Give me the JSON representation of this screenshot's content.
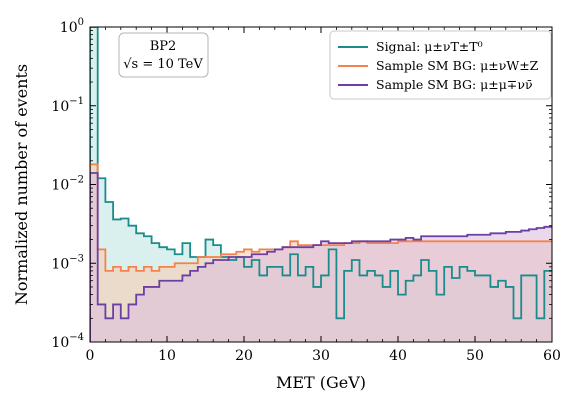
{
  "chart_data": {
    "type": "area",
    "step": true,
    "x_axis": {
      "label": "MET (GeV)",
      "range": [
        0,
        60
      ],
      "ticks": [
        0,
        10,
        20,
        30,
        40,
        50,
        60
      ]
    },
    "y_axis": {
      "label": "Normalized number of events",
      "scale": "log",
      "range": [
        0.0001,
        1
      ],
      "ticks": [
        {
          "value": 0.0001,
          "base": "10",
          "exp": "−4"
        },
        {
          "value": 0.001,
          "base": "10",
          "exp": "−3"
        },
        {
          "value": 0.01,
          "base": "10",
          "exp": "−2"
        },
        {
          "value": 0.1,
          "base": "10",
          "exp": "−1"
        },
        {
          "value": 1,
          "base": "10",
          "exp": "0"
        }
      ]
    },
    "bin_edges_start": 0,
    "bin_width": 1,
    "annotation": {
      "line1": "BP2",
      "line2": "√s = 10 TeV"
    },
    "legend": {
      "placement": "top-right"
    },
    "series": [
      {
        "name": "Signal: μ±νT±T⁰",
        "color": "#1a8c8c",
        "fill": "#bfe6e3",
        "values": [
          1.2,
          0.012,
          0.006,
          0.0036,
          0.0037,
          0.003,
          0.0024,
          0.0022,
          0.0018,
          0.0016,
          0.0015,
          0.0013,
          0.0018,
          0.0012,
          0.0012,
          0.002,
          0.0017,
          0.0012,
          0.0011,
          0.0012,
          0.0009,
          0.0011,
          0.0007,
          0.0009,
          0.0009,
          0.0007,
          0.0013,
          0.0007,
          0.0009,
          0.0005,
          0.0007,
          0.0015,
          0.0002,
          0.0008,
          0.0011,
          0.0007,
          0.0008,
          0.0007,
          0.0005,
          0.0008,
          0.0004,
          0.0006,
          0.0007,
          0.0011,
          0.0008,
          0.0004,
          0.0009,
          0.00065,
          0.0009,
          0.0008,
          0.0007,
          0.0007,
          0.0005,
          0.0006,
          0.0005,
          0.0002,
          0.0007,
          0.0007,
          0.0002,
          0.0008
        ]
      },
      {
        "name": "Sample SM BG: μ±νW±Z",
        "color": "#f4824a",
        "fill": "#f7cdb4",
        "values": [
          0.018,
          0.0015,
          0.0008,
          0.0009,
          0.0008,
          0.0009,
          0.0008,
          0.0009,
          0.0008,
          0.0009,
          0.0009,
          0.001,
          0.001,
          0.001,
          0.0012,
          0.0012,
          0.0012,
          0.0013,
          0.0013,
          0.0014,
          0.0015,
          0.0014,
          0.0015,
          0.0015,
          0.0015,
          0.0016,
          0.0019,
          0.0017,
          0.0017,
          0.0017,
          0.0017,
          0.0017,
          0.0017,
          0.0018,
          0.0018,
          0.0019,
          0.0018,
          0.0018,
          0.0018,
          0.0018,
          0.0019,
          0.0019,
          0.0019,
          0.0019,
          0.0019,
          0.0019,
          0.0019,
          0.0019,
          0.0019,
          0.0019,
          0.0019,
          0.0019,
          0.0019,
          0.0019,
          0.0019,
          0.0019,
          0.0019,
          0.0019,
          0.0019,
          0.0019
        ]
      },
      {
        "name": "Sample SM BG: μ±μ∓νν̄",
        "color": "#6b3fa3",
        "fill": "#dcc0dc",
        "values": [
          0.014,
          0.0003,
          0.0002,
          0.0003,
          0.0002,
          0.0003,
          0.0004,
          0.0005,
          0.0005,
          0.0006,
          0.0006,
          0.0006,
          0.0007,
          0.0008,
          0.0009,
          0.001,
          0.0011,
          0.0011,
          0.0012,
          0.0012,
          0.0012,
          0.0013,
          0.0013,
          0.0014,
          0.0015,
          0.0016,
          0.0016,
          0.0016,
          0.0016,
          0.0017,
          0.0019,
          0.0018,
          0.0018,
          0.0018,
          0.0019,
          0.0019,
          0.0019,
          0.0019,
          0.0019,
          0.002,
          0.002,
          0.0021,
          0.002,
          0.0022,
          0.0022,
          0.0022,
          0.0022,
          0.0022,
          0.0022,
          0.0023,
          0.0023,
          0.0023,
          0.0024,
          0.0024,
          0.0025,
          0.0025,
          0.0026,
          0.0027,
          0.0028,
          0.0029
        ]
      }
    ]
  }
}
